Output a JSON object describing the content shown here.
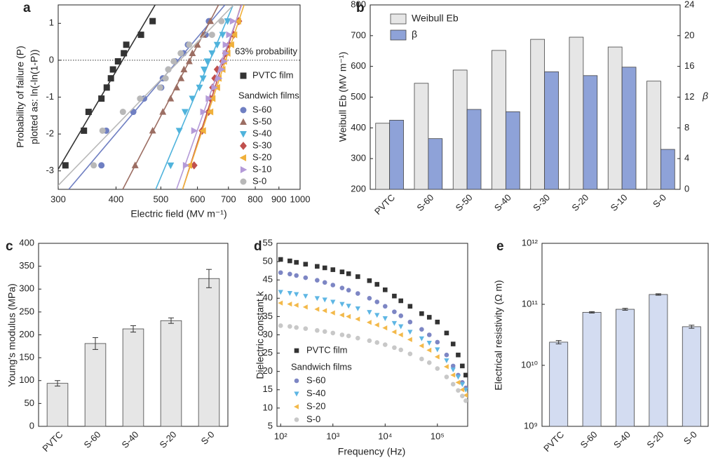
{
  "chart_data": [
    {
      "type": "scatter",
      "panel_label": "a",
      "xlabel": "Electric field (MV m⁻¹)",
      "ylabel": [
        "Probability of failure (P)",
        "plotted as: ln(-ln(1-P))"
      ],
      "xscale": "log",
      "xlim": [
        300,
        1000
      ],
      "xticks": [
        300,
        400,
        500,
        600,
        700,
        800,
        900,
        1000
      ],
      "ylim": [
        -3.5,
        1.5
      ],
      "yticks": [
        -3,
        -2,
        -1,
        0,
        1
      ],
      "fit_lines": true,
      "annotation": {
        "text": "63% probability",
        "y": 0
      },
      "legend_group_title": "Sandwich films",
      "series": [
        {
          "name": "PVTC film",
          "color": "#333333",
          "marker": "square",
          "x": [
            311,
            341,
            349,
            372,
            382,
            390,
            394,
            404,
            416,
            421,
            453,
            480
          ],
          "values": [
            -2.85,
            -1.91,
            -1.4,
            -1.04,
            -0.74,
            -0.49,
            -0.25,
            -0.03,
            0.19,
            0.42,
            0.69,
            1.06
          ]
        },
        {
          "name": "S-60",
          "color": "#6f7fc2",
          "marker": "circle",
          "x": [
            372,
            381,
            436,
            460,
            501,
            505,
            519,
            537,
            560,
            572,
            625,
            635
          ],
          "values": [
            -2.85,
            -1.91,
            -1.4,
            -1.04,
            -0.74,
            -0.49,
            -0.25,
            -0.03,
            0.19,
            0.42,
            0.69,
            1.06
          ]
        },
        {
          "name": "S-50",
          "color": "#9c6e63",
          "marker": "up",
          "x": [
            440,
            480,
            505,
            525,
            541,
            553,
            561,
            576,
            585,
            600,
            617,
            640
          ],
          "values": [
            -2.85,
            -1.91,
            -1.4,
            -1.04,
            -0.74,
            -0.49,
            -0.25,
            -0.03,
            0.19,
            0.42,
            0.69,
            1.06
          ]
        },
        {
          "name": "S-40",
          "color": "#4fb3dc",
          "marker": "down",
          "x": [
            525,
            548,
            564,
            585,
            606,
            617,
            620,
            630,
            645,
            662,
            680,
            697
          ],
          "values": [
            -2.85,
            -1.91,
            -1.4,
            -1.04,
            -0.74,
            -0.49,
            -0.25,
            -0.03,
            0.19,
            0.42,
            0.69,
            1.06
          ]
        },
        {
          "name": "S-30",
          "color": "#c0504d",
          "marker": "diamond",
          "x": [
            590,
            614,
            634,
            640,
            647,
            654,
            662,
            680,
            690,
            702,
            718,
            737
          ],
          "values": [
            -2.85,
            -1.91,
            -1.4,
            -1.04,
            -0.74,
            -0.49,
            -0.25,
            -0.03,
            0.19,
            0.42,
            0.69,
            1.06
          ]
        },
        {
          "name": "S-20",
          "color": "#f0b03a",
          "marker": "left",
          "x": [
            576,
            617,
            640,
            647,
            662,
            667,
            680,
            685,
            697,
            710,
            721,
            735
          ],
          "values": [
            -2.85,
            -1.91,
            -1.4,
            -1.04,
            -0.74,
            -0.49,
            -0.25,
            -0.03,
            0.19,
            0.42,
            0.69,
            1.06
          ]
        },
        {
          "name": "S-10",
          "color": "#b49ad8",
          "marker": "right",
          "x": [
            566,
            590,
            617,
            634,
            652,
            667,
            676,
            685,
            690,
            690,
            702,
            715
          ],
          "values": [
            -2.85,
            -1.91,
            -1.4,
            -1.04,
            -0.74,
            -0.49,
            -0.25,
            -0.03,
            0.19,
            0.42,
            0.69,
            1.06
          ]
        },
        {
          "name": "S-0",
          "color": "#b8b8b8",
          "marker": "circle",
          "x": [
            358,
            374,
            414,
            451,
            498,
            512,
            519,
            533,
            552,
            576,
            645,
            676
          ],
          "values": [
            -2.85,
            -1.91,
            -1.4,
            -1.04,
            -0.74,
            -0.49,
            -0.25,
            -0.03,
            0.19,
            0.42,
            0.69,
            1.06
          ]
        }
      ]
    },
    {
      "type": "bar",
      "panel_label": "b",
      "ylabel": "Weibull Eb (MV m⁻¹)",
      "y2label": "β",
      "categories": [
        "PVTC",
        "S-60",
        "S-50",
        "S-40",
        "S-30",
        "S-20",
        "S-10",
        "S-0"
      ],
      "ylim": [
        200,
        800
      ],
      "yticks": [
        200,
        300,
        400,
        500,
        600,
        700,
        800
      ],
      "y2lim": [
        0,
        24
      ],
      "y2ticks": [
        0,
        4,
        8,
        12,
        16,
        20,
        24
      ],
      "series": [
        {
          "name": "Weibull Eb",
          "color": "#e6e6e6",
          "values": [
            415,
            545,
            588,
            652,
            688,
            695,
            663,
            552
          ]
        },
        {
          "name": "β",
          "color": "#8ea2d8",
          "axis": "y2",
          "values": [
            9.0,
            6.6,
            10.4,
            10.1,
            15.3,
            14.8,
            15.9,
            5.2
          ]
        }
      ]
    },
    {
      "type": "bar",
      "panel_label": "c",
      "ylabel": "Young's modulus (MPa)",
      "categories": [
        "PVTC",
        "S-60",
        "S-40",
        "S-20",
        "S-0"
      ],
      "values": [
        94,
        181,
        213,
        231,
        323
      ],
      "errors": [
        6,
        13,
        7,
        6,
        20
      ],
      "color": "#e6e6e6",
      "ylim": [
        0,
        400
      ],
      "yticks": [
        0,
        50,
        100,
        150,
        200,
        250,
        300,
        350,
        400
      ]
    },
    {
      "type": "scatter",
      "panel_label": "d",
      "xlabel": "Frequency (Hz)",
      "ylabel": "Dielectric constant k",
      "xscale": "log",
      "xlim": [
        85,
        380000
      ],
      "xticks": [
        {
          "value": 100,
          "label": "10²"
        },
        {
          "value": 1000,
          "label": "10³"
        },
        {
          "value": 10000,
          "label": "10⁴"
        },
        {
          "value": 100000,
          "label": "10⁵"
        }
      ],
      "ylim": [
        5,
        55
      ],
      "yticks": [
        5,
        10,
        15,
        20,
        25,
        30,
        35,
        40,
        45,
        50,
        55
      ],
      "legend_group_title": "Sandwich films",
      "x": [
        100,
        150,
        200,
        300,
        500,
        700,
        1000,
        1500,
        2000,
        3000,
        5000,
        7000,
        10000,
        15000,
        20000,
        30000,
        50000,
        70000,
        100000,
        150000,
        200000,
        250000,
        300000,
        350000
      ],
      "series": [
        {
          "name": "PVTC film",
          "color": "#333333",
          "marker": "square",
          "values": [
            50.6,
            50.2,
            49.8,
            49.3,
            48.7,
            48.3,
            47.8,
            47.2,
            46.7,
            45.9,
            44.8,
            43.8,
            42.3,
            40.6,
            39.3,
            37.8,
            35.8,
            34.8,
            33.5,
            30.5,
            27.5,
            24.5,
            21.5,
            19
          ]
        },
        {
          "name": "S-60",
          "color": "#7d86c4",
          "marker": "circle",
          "values": [
            47,
            46.6,
            46.2,
            45.6,
            44.9,
            44.3,
            43.6,
            42.8,
            42.2,
            41.3,
            40,
            39,
            37.8,
            36.3,
            35.2,
            33.5,
            31.5,
            30,
            28,
            24.5,
            21.5,
            19,
            17,
            15.5
          ]
        },
        {
          "name": "S-40",
          "color": "#5eb6e4",
          "marker": "down",
          "values": [
            41.7,
            41.4,
            41.1,
            40.6,
            40,
            39.6,
            39,
            38.4,
            37.9,
            37.2,
            36.2,
            35.4,
            34.5,
            33.2,
            32.3,
            30.8,
            29,
            27.8,
            26,
            23,
            20.5,
            18.5,
            16.5,
            15
          ]
        },
        {
          "name": "S-20",
          "color": "#f3b94a",
          "marker": "left",
          "values": [
            38.7,
            38.4,
            38.1,
            37.6,
            37,
            36.6,
            36,
            35.4,
            35,
            34.3,
            33.4,
            32.7,
            31.9,
            30.8,
            30,
            28.7,
            27,
            25.8,
            24,
            21.3,
            19,
            17,
            15,
            13.5
          ]
        },
        {
          "name": "S-0",
          "color": "#c8c8c8",
          "marker": "circle",
          "values": [
            32.5,
            32.3,
            32,
            31.7,
            31.2,
            30.9,
            30.5,
            30,
            29.7,
            29.1,
            28.4,
            27.9,
            27.3,
            26.5,
            25.9,
            24.8,
            23.4,
            22.4,
            20.8,
            18.5,
            16.5,
            14.8,
            13.3,
            12
          ]
        }
      ]
    },
    {
      "type": "bar",
      "panel_label": "e",
      "ylabel": "Electrical resistivity (Ω m)",
      "yscale": "log",
      "categories": [
        "PVTC",
        "S-60",
        "S-40",
        "S-20",
        "S-0"
      ],
      "values": [
        24000000000,
        74000000000,
        83000000000,
        145000000000,
        43000000000
      ],
      "errors": [
        1500000000,
        2000000000,
        3000000000,
        4000000000,
        2500000000
      ],
      "color": "#d3dcf1",
      "ylim": [
        1000000000,
        1000000000000
      ],
      "yticks": [
        {
          "value": 1000000000,
          "label": "10⁹"
        },
        {
          "value": 10000000000,
          "label": "10¹⁰"
        },
        {
          "value": 100000000000,
          "label": "10¹¹"
        },
        {
          "value": 1000000000000,
          "label": "10¹²"
        }
      ]
    }
  ]
}
